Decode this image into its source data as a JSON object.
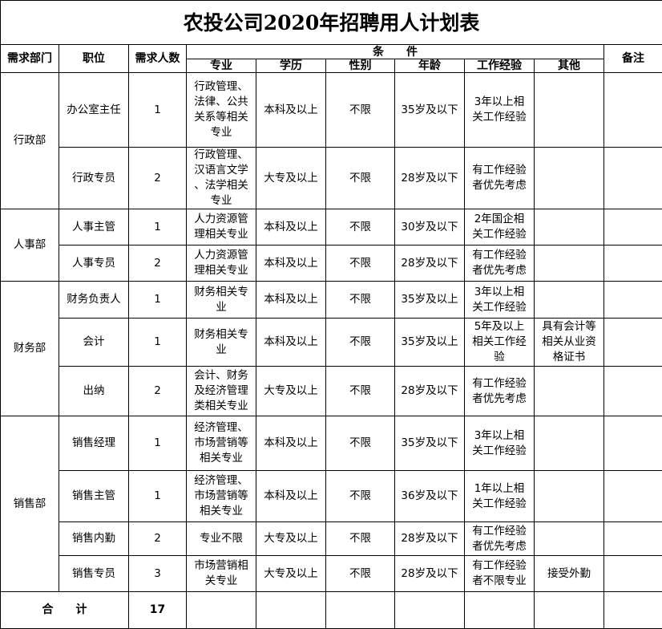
{
  "title": "农投公司2020年招聘用人计划表",
  "headers": {
    "department": "需求部门",
    "position": "职位",
    "count": "需求人数",
    "conditions": "条　　件",
    "major": "专业",
    "education": "学历",
    "gender": "性别",
    "age": "年龄",
    "experience": "工作经验",
    "other": "其他",
    "remarks": "备注"
  },
  "departments": [
    {
      "name": "行政部",
      "rows": [
        {
          "position": "办公室主任",
          "count": "1",
          "major": "行政管理、\n法律、公共\n关系等相关\n专业",
          "education": "本科及以上",
          "gender": "不限",
          "age": "35岁及以下",
          "experience": "3年以上相\n关工作经验",
          "other": "",
          "remarks": ""
        },
        {
          "position": "行政专员",
          "count": "2",
          "major": "行政管理、\n汉语言文学\n、法学相关\n专业",
          "education": "大专及以上",
          "gender": "不限",
          "age": "28岁及以下",
          "experience": "有工作经验\n者优先考虑",
          "other": "",
          "remarks": ""
        }
      ]
    },
    {
      "name": "人事部",
      "rows": [
        {
          "position": "人事主管",
          "count": "1",
          "major": "人力资源管\n理相关专业",
          "education": "本科及以上",
          "gender": "不限",
          "age": "30岁及以下",
          "experience": "2年国企相\n关工作经验",
          "other": "",
          "remarks": ""
        },
        {
          "position": "人事专员",
          "count": "2",
          "major": "人力资源管\n理相关专业",
          "education": "本科及以上",
          "gender": "不限",
          "age": "28岁及以下",
          "experience": "有工作经验\n者优先考虑",
          "other": "",
          "remarks": ""
        }
      ]
    },
    {
      "name": "财务部",
      "rows": [
        {
          "position": "财务负责人",
          "count": "1",
          "major": "财务相关专\n业",
          "education": "本科及以上",
          "gender": "不限",
          "age": "35岁及以上",
          "experience": "3年以上相\n关工作经验",
          "other": "",
          "remarks": ""
        },
        {
          "position": "会计",
          "count": "1",
          "major": "财务相关专\n业",
          "education": "本科及以上",
          "gender": "不限",
          "age": "35岁及以上",
          "experience": "5年及以上\n相关工作经\n验",
          "other": "具有会计等\n相关从业资\n格证书",
          "remarks": ""
        },
        {
          "position": "出纳",
          "count": "2",
          "major": "会计、财务\n及经济管理\n类相关专业",
          "education": "大专及以上",
          "gender": "不限",
          "age": "28岁及以下",
          "experience": "有工作经验\n者优先考虑",
          "other": "",
          "remarks": ""
        }
      ]
    },
    {
      "name": "销售部",
      "rows": [
        {
          "position": "销售经理",
          "count": "1",
          "major": "经济管理、\n市场营销等\n相关专业",
          "education": "本科及以上",
          "gender": "不限",
          "age": "35岁及以下",
          "experience": "3年以上相\n关工作经验",
          "other": "",
          "remarks": ""
        },
        {
          "position": "销售主管",
          "count": "1",
          "major": "经济管理、\n市场营销等\n相关专业",
          "education": "本科及以上",
          "gender": "不限",
          "age": "36岁及以下",
          "experience": "1年以上相\n关工作经验",
          "other": "",
          "remarks": ""
        },
        {
          "position": "销售内勤",
          "count": "2",
          "major": "专业不限",
          "education": "大专及以上",
          "gender": "不限",
          "age": "28岁及以下",
          "experience": "有工作经验\n者优先考虑",
          "other": "",
          "remarks": ""
        },
        {
          "position": "销售专员",
          "count": "3",
          "major": "市场营销相\n关专业",
          "education": "大专及以上",
          "gender": "不限",
          "age": "28岁及以下",
          "experience": "有工作经验\n者不限专业",
          "other": "接受外勤",
          "remarks": ""
        }
      ]
    }
  ],
  "total": {
    "label": "合　　计",
    "count": "17"
  }
}
